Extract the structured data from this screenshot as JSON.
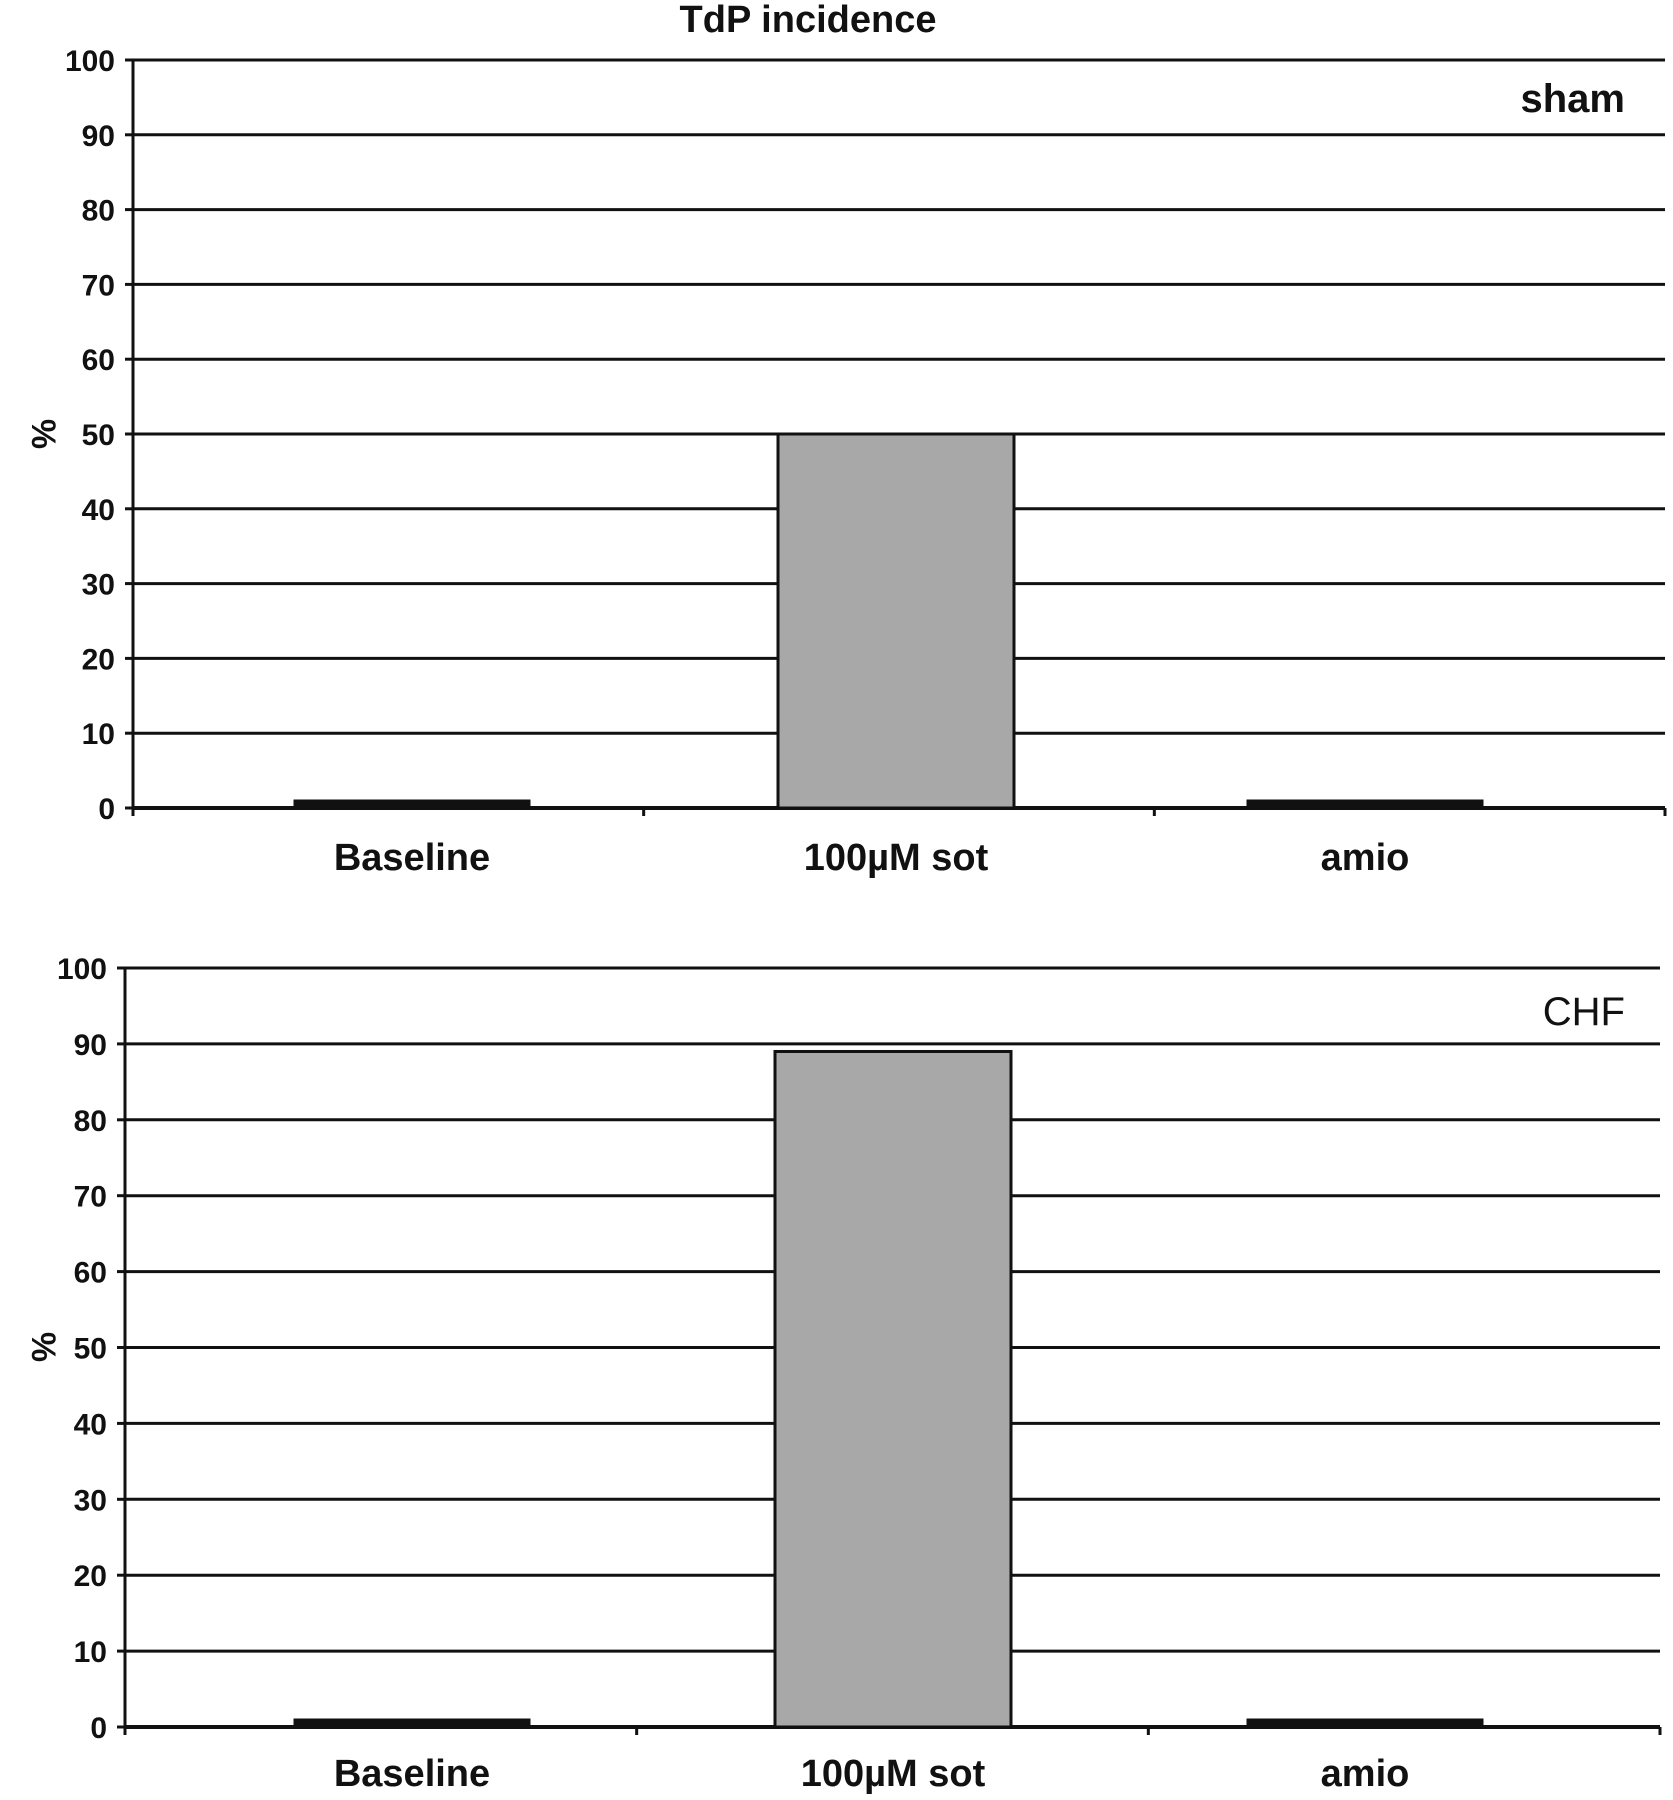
{
  "figure": {
    "title": "TdP incidence"
  },
  "colors": {
    "bar_fill": "#a8a8a8",
    "bar_stroke": "#111111",
    "grid": "#111111",
    "background": "#ffffff"
  },
  "chart_data": [
    {
      "type": "bar",
      "panel_label": "sham",
      "categories": [
        "Baseline",
        "100µM sot",
        "amio"
      ],
      "values": [
        0,
        50,
        0
      ],
      "ylabel": "%",
      "xlabel": "",
      "ylim": [
        0,
        100
      ],
      "yticks": [
        0,
        10,
        20,
        30,
        40,
        50,
        60,
        70,
        80,
        90,
        100
      ],
      "grid": true
    },
    {
      "type": "bar",
      "panel_label": "CHF",
      "categories": [
        "Baseline",
        "100µM sot",
        "amio"
      ],
      "values": [
        0,
        89,
        0
      ],
      "ylabel": "%",
      "xlabel": "",
      "ylim": [
        0,
        100
      ],
      "yticks": [
        0,
        10,
        20,
        30,
        40,
        50,
        60,
        70,
        80,
        90,
        100
      ],
      "grid": true
    }
  ]
}
